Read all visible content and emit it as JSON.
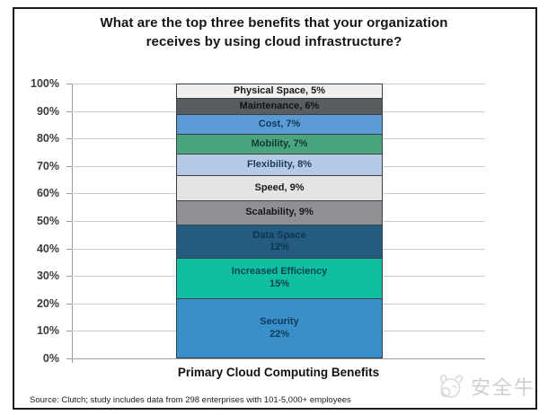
{
  "title": {
    "line1": "What are the top three benefits that your organization",
    "line2": "receives by using cloud infrastructure?"
  },
  "chart_data": {
    "type": "bar",
    "subtype": "stacked-single-column-percent",
    "title": "What are the top three benefits that your organization receives by using cloud infrastructure?",
    "xlabel": "Primary Cloud Computing Benefits",
    "ylabel": "",
    "ylim": [
      0,
      100
    ],
    "ytick_step": 10,
    "ytick_labels_top_to_bottom": [
      "100%",
      "90%",
      "80%",
      "70%",
      "60%",
      "50%",
      "40%",
      "30%",
      "20%",
      "10%",
      "0%"
    ],
    "grid": true,
    "legend": "none",
    "segments_top_to_bottom": [
      {
        "name": "Physical Space",
        "value": 5,
        "label_lines": [
          "Physical Space, 5%"
        ],
        "color": "#f0efed",
        "text_color": "#1a1a1a"
      },
      {
        "name": "Maintenance",
        "value": 6,
        "label_lines": [
          "Maintenance, 6%"
        ],
        "color": "#595d61",
        "text_color": "#121216"
      },
      {
        "name": "Cost",
        "value": 7,
        "label_lines": [
          "Cost, 7%"
        ],
        "color": "#5b9bd5",
        "text_color": "#123a5c"
      },
      {
        "name": "Mobility",
        "value": 7,
        "label_lines": [
          "Mobility, 7%"
        ],
        "color": "#4aa57e",
        "text_color": "#103a33"
      },
      {
        "name": "Flexibility",
        "value": 8,
        "label_lines": [
          "Flexibility, 8%"
        ],
        "color": "#b5cbe5",
        "text_color": "#1c3b5e"
      },
      {
        "name": "Speed",
        "value": 9,
        "label_lines": [
          "Speed, 9%"
        ],
        "color": "#e4e4e4",
        "text_color": "#1a1a1a"
      },
      {
        "name": "Scalability",
        "value": 9,
        "label_lines": [
          "Scalability, 9%"
        ],
        "color": "#8f9093",
        "text_color": "#18181b"
      },
      {
        "name": "Data Space",
        "value": 12,
        "label_lines": [
          "Data Space",
          "12%"
        ],
        "color": "#235c80",
        "text_color": "#0e3450"
      },
      {
        "name": "Increased Efficiency",
        "value": 15,
        "label_lines": [
          "Increased Efficiency",
          "15%"
        ],
        "color": "#0fbfa0",
        "text_color": "#0d4552"
      },
      {
        "name": "Security",
        "value": 22,
        "label_lines": [
          "Security",
          "22%"
        ],
        "color": "#3990c8",
        "text_color": "#0f3a5e"
      }
    ]
  },
  "footer": {
    "source": "Source: Clutch; study includes data from 298 enterprises with 101-5,000+ employees"
  },
  "watermark": {
    "text": "安全牛",
    "logo": "aqniu-cow-logo",
    "color": "#cfcfcf"
  }
}
